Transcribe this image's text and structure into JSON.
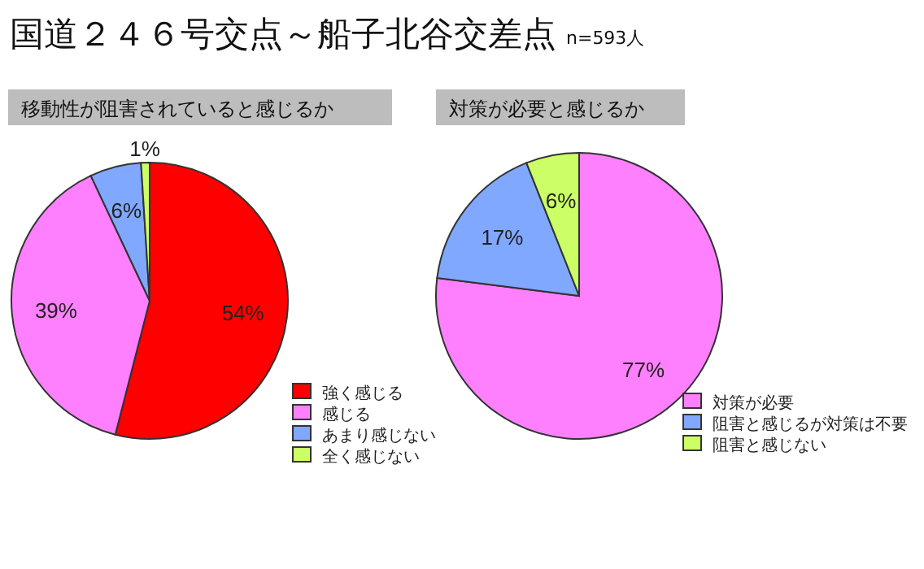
{
  "chart_data": [
    {
      "type": "pie",
      "title": "国道２４６号交点～船子北谷交差点",
      "subtitle": "移動性が阻害されていると感じるか",
      "annotations": [
        "n=593人"
      ],
      "categories": [
        "強く感じる",
        "感じる",
        "あまり感じない",
        "全く感じない"
      ],
      "values": [
        54,
        39,
        6,
        1
      ],
      "value_labels": [
        "54%",
        "39%",
        "6%",
        "1%"
      ],
      "colors": [
        "#ff0000",
        "#ff80ff",
        "#80a8ff",
        "#ccff66"
      ],
      "legend": "bottom right"
    },
    {
      "type": "pie",
      "title": "対策が必要と感じるか",
      "categories": [
        "対策が必要",
        "阻害と感じるが対策は不要",
        "阻害と感じない"
      ],
      "values": [
        77,
        17,
        6
      ],
      "value_labels": [
        "77%",
        "17%",
        "6%"
      ],
      "colors": [
        "#ff80ff",
        "#80a8ff",
        "#ccff66"
      ],
      "legend": "bottom right"
    }
  ]
}
